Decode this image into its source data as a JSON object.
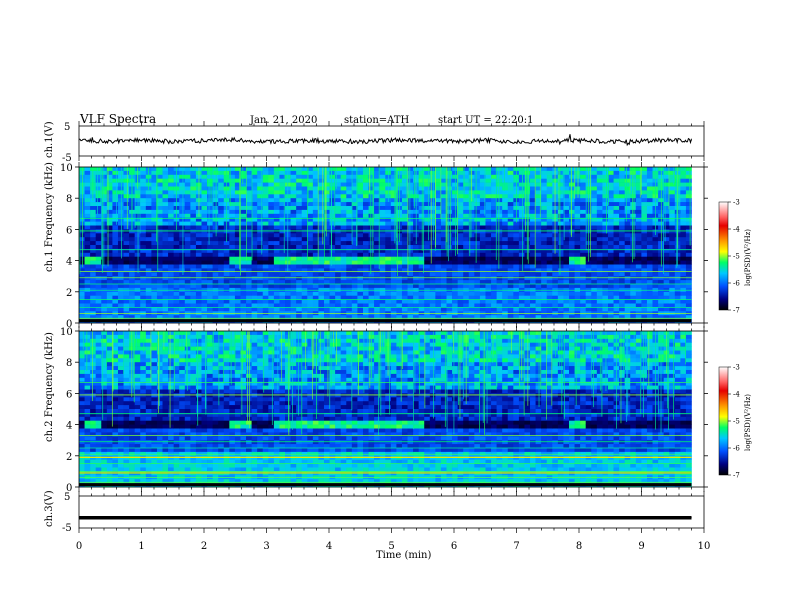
{
  "header": {
    "title": "VLF Spectra",
    "date": "Jan. 21, 2020",
    "station": "station=ATH",
    "start": "start UT = 22:20:1"
  },
  "chart_data": [
    {
      "type": "line",
      "panel": "ch1-waveform",
      "ylabel": "ch.1(V)",
      "ylim": [
        -5,
        5
      ],
      "y_ticks": [
        "5",
        "-5"
      ],
      "x": [
        0,
        0.5,
        1,
        1.5,
        2,
        2.5,
        3,
        3.5,
        4,
        4.5,
        5,
        5.5,
        6,
        6.5,
        7,
        7.5,
        8,
        8.5,
        9,
        9.5,
        9.8
      ],
      "values": [
        0.2,
        -0.1,
        0.3,
        -0.2,
        0.1,
        0.4,
        -0.3,
        0.2,
        0.0,
        -0.2,
        0.3,
        0.1,
        -0.1,
        0.2,
        -0.3,
        0.1,
        0.2,
        -0.2,
        0.0,
        0.3,
        0.1
      ]
    },
    {
      "type": "heatmap",
      "panel": "ch1-spectrogram",
      "ylabel": "ch.1 Frequency (kHz)",
      "ylim": [
        0,
        10
      ],
      "y_ticks": [
        "0",
        "2",
        "4",
        "6",
        "8",
        "10"
      ],
      "xlim": [
        0,
        9.8
      ],
      "colorbar": {
        "label": "log(PSD)(V²/Hz)",
        "ticks": [
          "-3",
          "-4",
          "-5",
          "-6",
          "-7"
        ]
      },
      "bright_band_kHz": [
        3.8,
        4.2
      ],
      "bright_band_minutes": [
        [
          0.05,
          0.4
        ],
        [
          2.45,
          2.8
        ],
        [
          3.1,
          5.5
        ],
        [
          7.8,
          8.1
        ]
      ]
    },
    {
      "type": "heatmap",
      "panel": "ch2-spectrogram",
      "ylabel": "ch.2 Frequency (kHz)",
      "ylim": [
        0,
        10
      ],
      "y_ticks": [
        "0",
        "2",
        "4",
        "6",
        "8",
        "10"
      ],
      "xlim": [
        0,
        9.8
      ],
      "colorbar": {
        "label": "log(PSD)(V²/Hz)",
        "ticks": [
          "-3",
          "-4",
          "-5",
          "-6",
          "-7"
        ]
      },
      "bright_band_kHz": [
        3.8,
        4.2
      ],
      "bright_band_minutes": [
        [
          0.05,
          0.4
        ],
        [
          2.45,
          2.8
        ],
        [
          3.1,
          5.5
        ],
        [
          7.8,
          8.1
        ]
      ]
    },
    {
      "type": "line",
      "panel": "ch3-waveform",
      "ylabel": "ch.3(V)",
      "ylim": [
        -5,
        5
      ],
      "y_ticks": [
        "5",
        "-5"
      ],
      "x": [
        0,
        9.8
      ],
      "values": [
        -1.8,
        -1.8
      ]
    }
  ],
  "xaxis": {
    "label": "Time (min)",
    "ticks": [
      "0",
      "1",
      "2",
      "3",
      "4",
      "5",
      "6",
      "7",
      "8",
      "9",
      "10"
    ],
    "xlim": [
      0,
      10
    ]
  },
  "colors": {
    "colormap": [
      "#ffffff",
      "#e60000",
      "#ff9900",
      "#ffff00",
      "#00ff66",
      "#00c8ff",
      "#0050ff",
      "#000080",
      "#000000"
    ]
  }
}
